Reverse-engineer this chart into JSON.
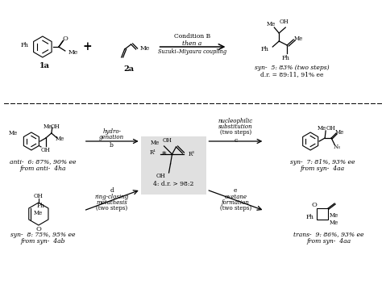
{
  "background": "#ffffff",
  "top": {
    "reactant1": "1a",
    "reactant2": "2a",
    "arrow_line1": "Condition B",
    "arrow_line2": "then a",
    "arrow_line3": "Suzuki–Miyaura coupling",
    "product_name": "syn-5: 83% (two steps)",
    "product_dr": "d.r. = 89:11, 91% ee"
  },
  "center": {
    "label": "4: d.r. > 98:2",
    "fill": "#e0e0e0"
  },
  "arrow_b": {
    "label": "b",
    "line1": "hydro-",
    "line2": "genation"
  },
  "arrow_c": {
    "label": "c",
    "line1": "nucleophilic",
    "line2": "substitution",
    "line3": "(two steps)"
  },
  "arrow_d": {
    "label": "d",
    "line1": "ring-closing",
    "line2": "metathesis",
    "line3": "(two steps)"
  },
  "arrow_e": {
    "label": "e",
    "line1": "oxetane",
    "line2": "formation",
    "line3": "(two steps)"
  },
  "prod6": {
    "name": "anti-6: 87%, 90% ee",
    "from": "from anti-4ha"
  },
  "prod7": {
    "name": "syn-7: 81%, 93% ee",
    "from": "from syn-4aa"
  },
  "prod8": {
    "name": "syn-8: 75%, 95% ee",
    "from": "from syn-4ab"
  },
  "prod9": {
    "name": "trans-9: 86%, 93% ee",
    "from": "from syn-4aa"
  }
}
